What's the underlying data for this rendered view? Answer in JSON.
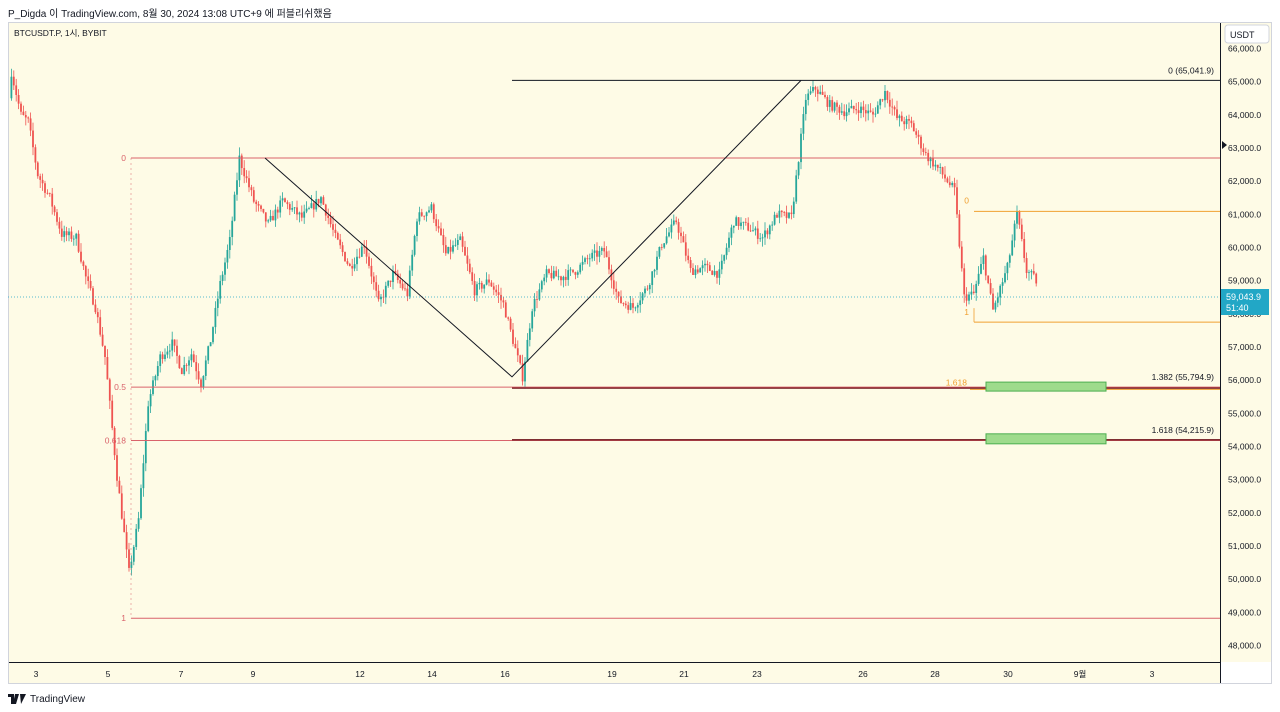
{
  "header": {
    "text": "P_Digda 이 TradingView.com, 8월 30, 2024 13:08 UTC+9 에 퍼블리쉬했음"
  },
  "symbol": "BTCUSDT.P, 1시, BYBIT",
  "currency_button": "USDT",
  "footer": {
    "brand": "TradingView"
  },
  "colors": {
    "background": "#fefbe6",
    "up": "#26a69a",
    "down": "#ef5350",
    "fib_left": "#d9636b",
    "fib_right": "#f0a030",
    "trend": "#131722",
    "price_tag": "#22a7c6",
    "zone_fill": "#9edb8c",
    "zone_stroke": "#4caf50"
  },
  "price_tag": {
    "price": "59,043.9",
    "countdown": "51:40"
  },
  "chart_data": {
    "type": "candlestick",
    "y_axis": {
      "min": 47500,
      "max": 66800,
      "ticks": [
        "48,000.0",
        "49,000.0",
        "50,000.0",
        "51,000.0",
        "52,000.0",
        "53,000.0",
        "54,000.0",
        "55,000.0",
        "56,000.0",
        "57,000.0",
        "58,000.0",
        "59,000.0",
        "60,000.0",
        "61,000.0",
        "62,000.0",
        "63,000.0",
        "64,000.0",
        "65,000.0",
        "66,000.0"
      ]
    },
    "x_axis": {
      "ticks": [
        "3",
        "5",
        "7",
        "9",
        "12",
        "14",
        "16",
        "19",
        "21",
        "23",
        "26",
        "28",
        "30",
        "9월",
        "3"
      ]
    },
    "keypoints": [
      {
        "t": 0,
        "p": 64500
      },
      {
        "t": 1,
        "p": 65300
      },
      {
        "t": 5,
        "p": 64000
      },
      {
        "t": 8,
        "p": 63800
      },
      {
        "t": 12,
        "p": 62200
      },
      {
        "t": 17,
        "p": 61500
      },
      {
        "t": 22,
        "p": 60400
      },
      {
        "t": 28,
        "p": 60300
      },
      {
        "t": 32,
        "p": 59100
      },
      {
        "t": 36,
        "p": 58200
      },
      {
        "t": 40,
        "p": 56700
      },
      {
        "t": 45,
        "p": 53100
      },
      {
        "t": 50,
        "p": 50200
      },
      {
        "t": 54,
        "p": 51800
      },
      {
        "t": 58,
        "p": 55300
      },
      {
        "t": 63,
        "p": 56700
      },
      {
        "t": 68,
        "p": 57100
      },
      {
        "t": 72,
        "p": 56300
      },
      {
        "t": 76,
        "p": 56800
      },
      {
        "t": 80,
        "p": 55900
      },
      {
        "t": 84,
        "p": 57200
      },
      {
        "t": 88,
        "p": 58900
      },
      {
        "t": 92,
        "p": 60200
      },
      {
        "t": 96,
        "p": 62700
      },
      {
        "t": 102,
        "p": 61400
      },
      {
        "t": 108,
        "p": 60700
      },
      {
        "t": 114,
        "p": 61400
      },
      {
        "t": 122,
        "p": 60900
      },
      {
        "t": 130,
        "p": 61500
      },
      {
        "t": 136,
        "p": 60300
      },
      {
        "t": 142,
        "p": 59400
      },
      {
        "t": 148,
        "p": 60100
      },
      {
        "t": 154,
        "p": 58300
      },
      {
        "t": 160,
        "p": 59200
      },
      {
        "t": 166,
        "p": 58600
      },
      {
        "t": 170,
        "p": 60900
      },
      {
        "t": 176,
        "p": 61200
      },
      {
        "t": 182,
        "p": 59800
      },
      {
        "t": 188,
        "p": 60200
      },
      {
        "t": 194,
        "p": 58700
      },
      {
        "t": 200,
        "p": 59000
      },
      {
        "t": 206,
        "p": 58300
      },
      {
        "t": 210,
        "p": 57200
      },
      {
        "t": 214,
        "p": 56100
      },
      {
        "t": 218,
        "p": 58200
      },
      {
        "t": 224,
        "p": 59200
      },
      {
        "t": 230,
        "p": 59100
      },
      {
        "t": 236,
        "p": 59300
      },
      {
        "t": 242,
        "p": 59700
      },
      {
        "t": 248,
        "p": 59900
      },
      {
        "t": 254,
        "p": 58400
      },
      {
        "t": 260,
        "p": 58200
      },
      {
        "t": 266,
        "p": 58800
      },
      {
        "t": 272,
        "p": 60100
      },
      {
        "t": 278,
        "p": 60800
      },
      {
        "t": 284,
        "p": 59300
      },
      {
        "t": 290,
        "p": 59400
      },
      {
        "t": 296,
        "p": 59200
      },
      {
        "t": 302,
        "p": 60800
      },
      {
        "t": 308,
        "p": 60600
      },
      {
        "t": 314,
        "p": 60300
      },
      {
        "t": 320,
        "p": 61000
      },
      {
        "t": 326,
        "p": 60900
      },
      {
        "t": 332,
        "p": 64500
      },
      {
        "t": 336,
        "p": 64800
      },
      {
        "t": 342,
        "p": 64300
      },
      {
        "t": 348,
        "p": 64100
      },
      {
        "t": 354,
        "p": 64200
      },
      {
        "t": 360,
        "p": 64000
      },
      {
        "t": 365,
        "p": 64700
      },
      {
        "t": 370,
        "p": 63900
      },
      {
        "t": 376,
        "p": 63700
      },
      {
        "t": 382,
        "p": 62800
      },
      {
        "t": 388,
        "p": 62300
      },
      {
        "t": 394,
        "p": 61700
      },
      {
        "t": 398,
        "p": 58500
      },
      {
        "t": 402,
        "p": 58600
      },
      {
        "t": 406,
        "p": 59700
      },
      {
        "t": 410,
        "p": 58100
      },
      {
        "t": 416,
        "p": 59400
      },
      {
        "t": 420,
        "p": 61000
      },
      {
        "t": 424,
        "p": 59300
      },
      {
        "t": 428,
        "p": 59000
      }
    ],
    "fib_left": [
      {
        "label": "0",
        "price": 62700
      },
      {
        "label": "0.5",
        "price": 55790
      },
      {
        "label": "0.618",
        "price": 54180
      },
      {
        "label": "1",
        "price": 48820
      }
    ],
    "fib_right": [
      {
        "label": "0",
        "price": 61090
      },
      {
        "label": "1",
        "price": 57750
      },
      {
        "label": "1.618",
        "price": 55720
      }
    ],
    "targets": [
      {
        "label": "0 (65,041.9)",
        "price": 65040
      },
      {
        "label": "1.382 (55,794.9)",
        "price": 55790
      },
      {
        "label": "1.618 (54,215.9)",
        "price": 54200
      }
    ],
    "zigzag": [
      {
        "price": 62700
      },
      {
        "price": 56100
      },
      {
        "price": 65040
      }
    ]
  }
}
